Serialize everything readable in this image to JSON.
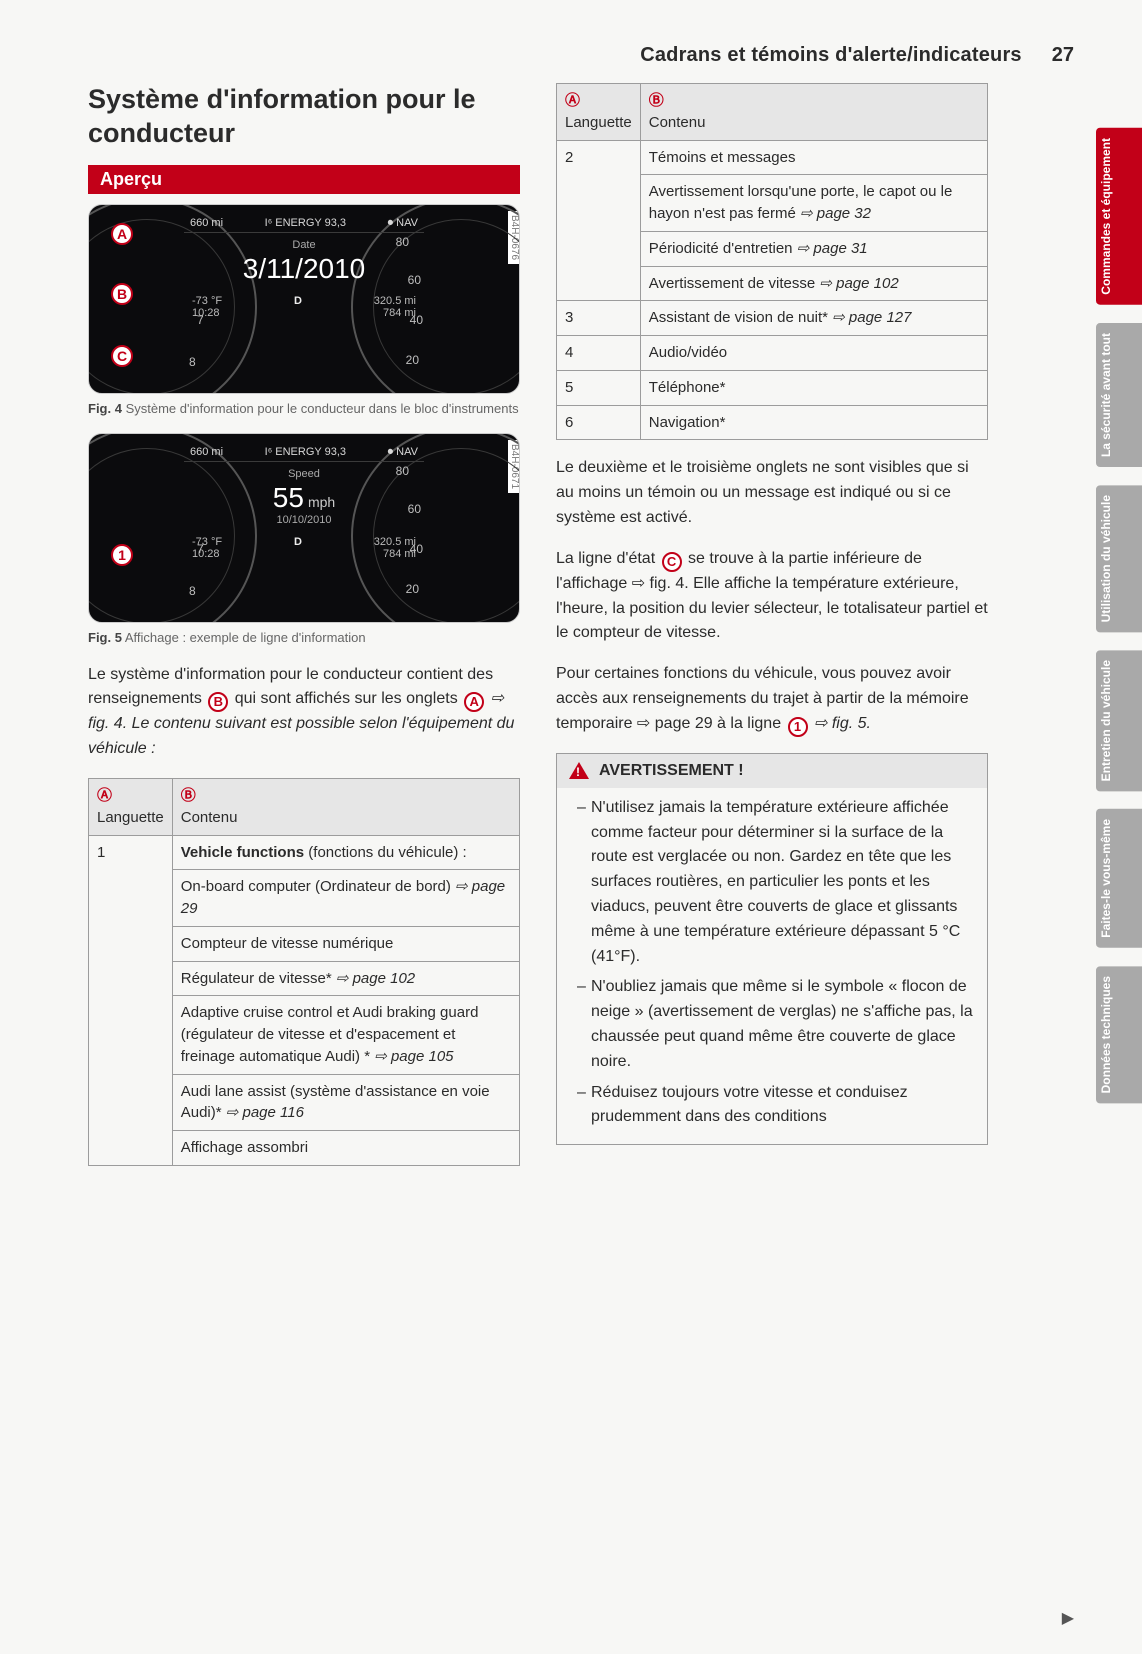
{
  "header": {
    "section": "Cadrans et témoins d'alerte/indicateurs",
    "page_number": "27"
  },
  "heading": "Système d'information pour le conducteur",
  "overview_label": "Aperçu",
  "fig4": {
    "ref": "B4H-0676",
    "top_left": "660 mi",
    "top_mid": "I⁶ ENERGY 93,3",
    "top_right": "⏺ NAV",
    "label": "Date",
    "big": "3/11/2010",
    "bl1_a": "-73 °F",
    "bl1_b": "D",
    "bl1_c": "320.5 mi",
    "bl2_a": "10:28",
    "bl2_c": "784 mi",
    "caption_bold": "Fig. 4",
    "caption": "Système d'information pour le conducteur dans le bloc d'instruments"
  },
  "fig5": {
    "ref": "B4H-0671",
    "top_left": "660 mi",
    "top_mid": "I⁶ ENERGY 93,3",
    "top_right": "⏺ NAV",
    "label": "Speed",
    "big": "55",
    "big_unit": "mph",
    "sub": "10/10/2010",
    "bl1_a": "-73 °F",
    "bl1_b": "D",
    "bl1_c": "320.5 mi",
    "bl2_a": "10:28",
    "bl2_c": "784 mi",
    "caption_bold": "Fig. 5",
    "caption": "Affichage : exemple de ligne d'information"
  },
  "para1_a": "Le système d'information pour le conducteur contient des renseignements ",
  "para1_b": " qui sont affichés sur les onglets ",
  "para1_c": " ⇨ fig. 4. Le contenu suivant est possible selon l'équipement du véhicule :",
  "table_head": {
    "a_letter": "Ⓐ",
    "a_label": "Languette",
    "b_letter": "Ⓑ",
    "b_label": "Contenu"
  },
  "table_left": [
    {
      "n": "1",
      "rows": [
        "Vehicle functions (fonctions du véhicule) :",
        "On-board computer (Ordinateur de bord) ⇨ page 29",
        "Compteur de vitesse numérique",
        "Régulateur de vitesse* ⇨ page 102",
        "Adaptive cruise control et Audi braking guard (régulateur de vitesse et d'espacement et freinage automatique Audi) * ⇨ page 105",
        "Audi lane assist (système d'assistance en voie Audi)* ⇨ page 116",
        "Affichage assombri"
      ]
    }
  ],
  "table_right": [
    {
      "n": "2",
      "rows": [
        "Témoins et messages",
        "Avertissement lorsqu'une porte, le capot ou le hayon n'est pas fermé ⇨ page 32",
        "Périodicité d'entretien ⇨ page 31",
        "Avertissement de vitesse ⇨ page 102"
      ]
    },
    {
      "n": "3",
      "rows": [
        "Assistant de vision de nuit* ⇨ page 127"
      ]
    },
    {
      "n": "4",
      "rows": [
        "Audio/vidéo"
      ]
    },
    {
      "n": "5",
      "rows": [
        "Téléphone*"
      ]
    },
    {
      "n": "6",
      "rows": [
        "Navigation*"
      ]
    }
  ],
  "para2": "Le deuxième et le troisième onglets ne sont visibles que si au moins un témoin ou un message est indiqué ou si ce système est activé.",
  "para3_a": "La ligne d'état ",
  "para3_b": " se trouve à la partie inférieure de l'affichage ⇨ fig. 4. Elle affiche la température extérieure, l'heure, la position du levier sélecteur, le totalisateur partiel et le compteur de vitesse.",
  "para4_a": "Pour certaines fonctions du véhicule, vous pouvez avoir accès aux renseignements du trajet à partir de la mémoire temporaire ⇨ page 29 à la ligne ",
  "para4_b": " ⇨ fig. 5.",
  "warning": {
    "title": "AVERTISSEMENT !",
    "items": [
      "N'utilisez jamais la température extérieure affichée comme facteur pour déterminer si la surface de la route est verglacée ou non. Gardez en tête que les surfaces routières, en particulier les ponts et les viaducs, peuvent être couverts de glace et glissants même à une température extérieure dépassant 5 °C (41°F).",
      "N'oubliez jamais que même si le symbole « flocon de neige » (avertissement de verglas) ne s'affiche pas, la chaussée peut quand même être couverte de glace noire.",
      "Réduisez toujours votre vitesse et conduisez prudemment dans des conditions"
    ]
  },
  "side_tabs": [
    {
      "label": "Commandes et équipement",
      "active": true
    },
    {
      "label": "La sécurité avant tout",
      "active": false
    },
    {
      "label": "Utilisation du véhicule",
      "active": false
    },
    {
      "label": "Entretien du véhicule",
      "active": false
    },
    {
      "label": "Faites-le vous-même",
      "active": false
    },
    {
      "label": "Données techniques",
      "active": false
    }
  ],
  "colors": {
    "red": "#c20018",
    "tab_grey": "#a9a9a9",
    "border": "#9c9c9c",
    "thead_bg": "#e6e6e6"
  }
}
